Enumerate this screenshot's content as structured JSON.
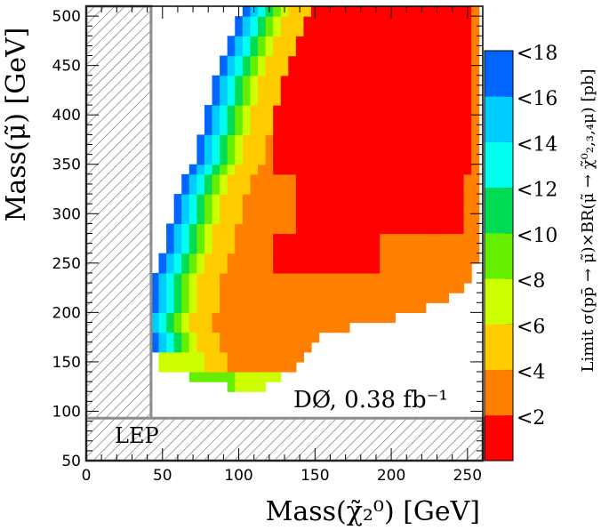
{
  "chart_data": {
    "type": "heatmap",
    "xlabel": "Mass(χ̃₂⁰) [GeV]",
    "ylabel": "Mass(μ̃) [GeV]",
    "zlabel": "Limit σ(pp̄ → μ̃)×BR(μ̃ → χ̃⁰₂,₃,₄μ) [pb]",
    "annotation": "DØ, 0.38 fb⁻¹",
    "xlim": [
      0,
      260
    ],
    "ylim": [
      50,
      510
    ],
    "xticks": [
      {
        "value": 0,
        "label": "0"
      },
      {
        "value": 50,
        "label": "50"
      },
      {
        "value": 100,
        "label": "100"
      },
      {
        "value": 150,
        "label": "150"
      },
      {
        "value": 200,
        "label": "200"
      },
      {
        "value": 250,
        "label": "250"
      }
    ],
    "yticks": [
      {
        "value": 50,
        "label": "50"
      },
      {
        "value": 100,
        "label": "100"
      },
      {
        "value": 150,
        "label": "150"
      },
      {
        "value": 200,
        "label": "200"
      },
      {
        "value": 250,
        "label": "250"
      },
      {
        "value": 300,
        "label": "300"
      },
      {
        "value": 350,
        "label": "350"
      },
      {
        "value": 400,
        "label": "400"
      },
      {
        "value": 450,
        "label": "450"
      },
      {
        "value": 500,
        "label": "500"
      }
    ],
    "color_scale": [
      {
        "upper": 2,
        "label": "<2",
        "color": "#ff0000"
      },
      {
        "upper": 4,
        "label": "<4",
        "color": "#ff7f00"
      },
      {
        "upper": 6,
        "label": "<6",
        "color": "#ffcc00"
      },
      {
        "upper": 8,
        "label": "<8",
        "color": "#ccff00"
      },
      {
        "upper": 10,
        "label": "<10",
        "color": "#66ee00"
      },
      {
        "upper": 12,
        "label": "<12",
        "color": "#00dd55"
      },
      {
        "upper": 14,
        "label": "<14",
        "color": "#00ffee"
      },
      {
        "upper": 16,
        "label": "<16",
        "color": "#00ccff"
      },
      {
        "upper": 18,
        "label": "<18",
        "color": "#0066ff"
      }
    ],
    "excluded_regions": [
      {
        "label": "",
        "xrange": [
          0,
          42.5
        ],
        "yrange": [
          50,
          510
        ]
      },
      {
        "label": "LEP",
        "xrange": [
          0,
          260
        ],
        "yrange": [
          50,
          93
        ]
      }
    ],
    "grid_step": {
      "x": 5,
      "y": 10
    },
    "rows": [
      {
        "y": 125,
        "x_from": 95,
        "x_to": 117.5
      },
      {
        "y": 135,
        "x_from": 70,
        "x_to": 127.5
      },
      {
        "y": 145,
        "x_from": 50,
        "x_to": 137.5
      },
      {
        "y": 155,
        "x_from": 50,
        "x_to": 142.5
      },
      {
        "y": 165,
        "x_from": 45,
        "x_to": 147.5
      },
      {
        "y": 175,
        "x_from": 45,
        "x_to": 150
      },
      {
        "y": 185,
        "x_from": 40,
        "x_to": 170
      },
      {
        "y": 195,
        "x_from": 40,
        "x_to": 200
      },
      {
        "y": 205,
        "x_from": 45,
        "x_to": 220
      },
      {
        "y": 215,
        "x_from": 45,
        "x_to": 235
      },
      {
        "y": 225,
        "x_from": 45,
        "x_to": 245
      },
      {
        "y": 235,
        "x_from": 45,
        "x_to": 250
      },
      {
        "y": 245,
        "x_from": 50,
        "x_to": 252.5
      },
      {
        "y": 255,
        "x_from": 50,
        "x_to": 255
      },
      {
        "y": 265,
        "x_from": 55,
        "x_to": 255
      },
      {
        "y": 275,
        "x_from": 55,
        "x_to": 255
      },
      {
        "y": 285,
        "x_from": 55,
        "x_to": 255
      },
      {
        "y": 295,
        "x_from": 60,
        "x_to": 255
      },
      {
        "y": 305,
        "x_from": 60,
        "x_to": 255
      },
      {
        "y": 315,
        "x_from": 60,
        "x_to": 255
      },
      {
        "y": 325,
        "x_from": 65,
        "x_to": 255
      },
      {
        "y": 335,
        "x_from": 65,
        "x_to": 255
      },
      {
        "y": 345,
        "x_from": 70,
        "x_to": 255
      },
      {
        "y": 355,
        "x_from": 75,
        "x_to": 255
      },
      {
        "y": 365,
        "x_from": 75,
        "x_to": 255
      },
      {
        "y": 375,
        "x_from": 75,
        "x_to": 255
      },
      {
        "y": 385,
        "x_from": 80,
        "x_to": 255
      },
      {
        "y": 395,
        "x_from": 80,
        "x_to": 255
      },
      {
        "y": 405,
        "x_from": 80,
        "x_to": 255
      },
      {
        "y": 415,
        "x_from": 85,
        "x_to": 255
      },
      {
        "y": 425,
        "x_from": 85,
        "x_to": 255
      },
      {
        "y": 435,
        "x_from": 85,
        "x_to": 255
      },
      {
        "y": 445,
        "x_from": 90,
        "x_to": 255
      },
      {
        "y": 455,
        "x_from": 90,
        "x_to": 255
      },
      {
        "y": 465,
        "x_from": 95,
        "x_to": 255
      },
      {
        "y": 475,
        "x_from": 95,
        "x_to": 255
      },
      {
        "y": 485,
        "x_from": 100,
        "x_to": 255
      },
      {
        "y": 495,
        "x_from": 100,
        "x_to": 255
      },
      {
        "y": 505,
        "x_from": 105,
        "x_to": 255
      }
    ]
  }
}
